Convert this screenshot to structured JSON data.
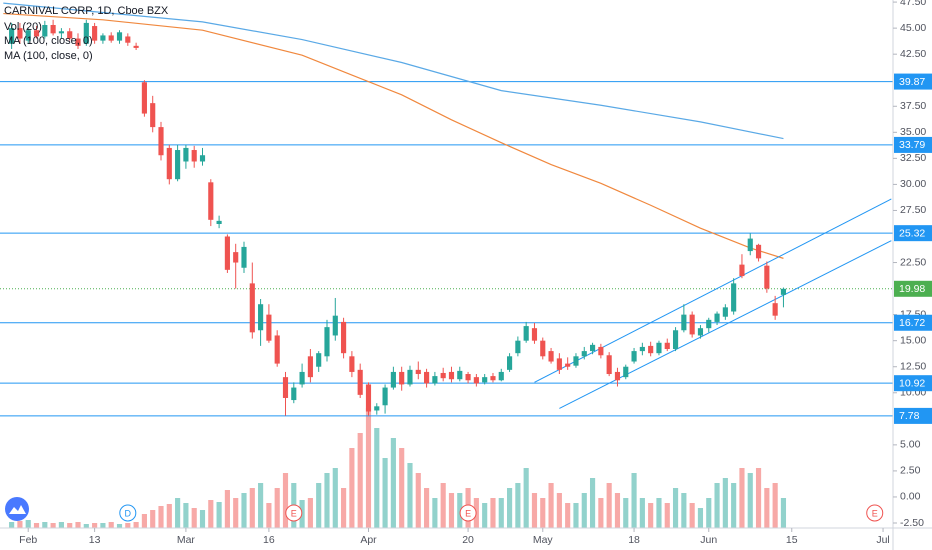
{
  "chart_data": {
    "type": "candlestick",
    "title": "CARNIVAL CORP, 1D, Cboe BZX",
    "volume_name": "Vol (20)",
    "up_color": "#26a69a",
    "down_color": "#ef5350",
    "x": [
      -2,
      -1,
      0,
      1,
      2,
      3,
      4,
      5,
      6,
      7,
      8,
      9,
      10,
      11,
      12,
      13,
      14,
      15,
      16,
      17,
      18,
      19,
      20,
      21,
      22,
      23,
      24,
      25,
      26,
      27,
      28,
      29,
      30,
      31,
      32,
      33,
      34,
      35,
      36,
      37,
      38,
      39,
      40,
      41,
      42,
      43,
      44,
      45,
      46,
      47,
      48,
      49,
      50,
      51,
      52,
      53,
      54,
      55,
      56,
      57,
      58,
      59,
      60,
      61,
      62,
      63,
      64,
      65,
      66,
      67,
      68,
      69,
      70,
      71,
      72,
      73,
      74,
      75,
      76,
      77,
      78,
      79,
      80,
      81,
      82,
      83,
      84,
      85,
      86,
      87,
      88,
      89,
      90,
      91
    ],
    "open": [
      43.5,
      45,
      43.8,
      44.8,
      44.2,
      45.3,
      44.5,
      44.7,
      44,
      43.5,
      45.2,
      43.8,
      44.3,
      43.8,
      44.2,
      43.3,
      39.8,
      37.8,
      35.5,
      33.5,
      30.5,
      32.2,
      33.3,
      32.2,
      30.2,
      26.2,
      25,
      23.5,
      22,
      20.5,
      16,
      17.5,
      15.5,
      11.5,
      9.3,
      10.8,
      13.5,
      12.5,
      13.5,
      15.5,
      16.8,
      13.5,
      12.2,
      10.8,
      8.3,
      8.8,
      10.5,
      12,
      10.8,
      12.2,
      12,
      10.9,
      11.9,
      12,
      11.3,
      11.8,
      11.5,
      11,
      11.6,
      11.2,
      12.2,
      13.8,
      15,
      16.2,
      15,
      14,
      13.3,
      12.8,
      12.6,
      13.5,
      14,
      14.4,
      13.6,
      12,
      11.5,
      13,
      14,
      14.5,
      13.8,
      14.8,
      14.2,
      16,
      17.5,
      15.5,
      16.2,
      16.8,
      17.3,
      17.8,
      22.3,
      23.6,
      24.2,
      22.2,
      18.6,
      19.4
    ],
    "high": [
      45.5,
      45.5,
      45,
      45.2,
      45.7,
      45.8,
      45,
      45,
      44.5,
      45.8,
      45.5,
      44.5,
      44.6,
      44.8,
      44.5,
      43.6,
      40,
      38.5,
      36,
      33.8,
      33.8,
      33.8,
      33.7,
      33.5,
      30.5,
      27,
      25.2,
      24.3,
      24.5,
      22.5,
      19,
      18.5,
      16,
      12,
      11,
      12.8,
      14.2,
      14,
      17,
      19.1,
      17.2,
      14,
      12.8,
      11,
      9,
      10.8,
      12.5,
      12.5,
      12.6,
      13,
      12.3,
      12,
      12.4,
      12.5,
      12.5,
      12,
      11.8,
      11.8,
      11.9,
      12.3,
      13.8,
      15.4,
      16.8,
      16.7,
      15.3,
      14.3,
      13.8,
      13.4,
      13.8,
      14.4,
      14.8,
      14.7,
      13.9,
      12.4,
      12.7,
      14.3,
      14.8,
      14.9,
      15,
      15.2,
      16.3,
      18.5,
      17.8,
      16.5,
      17.2,
      17.8,
      18.5,
      21,
      23.3,
      25.3,
      24.3,
      22.6,
      19.3,
      20.1
    ],
    "low": [
      43,
      43.5,
      43.5,
      44,
      44,
      44.3,
      44,
      43.8,
      43,
      43.3,
      43.5,
      43.5,
      43.6,
      43.5,
      43.3,
      42.9,
      36.5,
      35,
      32.3,
      30,
      30.3,
      31.5,
      31.6,
      31.8,
      26,
      25.8,
      21.5,
      20,
      21.5,
      15.2,
      14.5,
      14.8,
      12.5,
      7.8,
      9,
      10.5,
      11,
      12,
      13,
      15,
      13.3,
      11.5,
      9.5,
      7.8,
      7.9,
      8,
      10.3,
      10.2,
      10.6,
      11.3,
      10.5,
      10.7,
      11.1,
      11,
      11.1,
      10.9,
      10.6,
      10.8,
      11,
      11.1,
      12,
      13.5,
      14.8,
      14.7,
      13.2,
      12.8,
      11.8,
      12.2,
      12.4,
      13.2,
      13.7,
      13.3,
      11.6,
      10.6,
      11.3,
      12.8,
      13.6,
      13.5,
      13.6,
      14,
      14,
      15.8,
      15.3,
      15.2,
      15.8,
      16.5,
      17,
      17.5,
      21,
      23.2,
      22.6,
      19.6,
      17,
      18.2
    ],
    "close": [
      45,
      44,
      44.8,
      44.2,
      45.3,
      44.5,
      44.7,
      44,
      43.3,
      45.5,
      43.8,
      44.3,
      43.8,
      44.6,
      43.6,
      43.1,
      36.8,
      35.5,
      32.8,
      30.5,
      33.3,
      33.5,
      32.2,
      32.8,
      26.6,
      26.5,
      21.8,
      22.5,
      24,
      15.8,
      18.5,
      15,
      12.8,
      9.5,
      10.5,
      12,
      11.5,
      13.8,
      16.3,
      17.4,
      13.8,
      12,
      9.8,
      8.2,
      8.7,
      10.5,
      12,
      10.8,
      12.2,
      11.8,
      10.9,
      11.6,
      11.4,
      11.3,
      12.1,
      11.2,
      10.9,
      11.5,
      11.2,
      12,
      13.5,
      15,
      16.4,
      15,
      13.5,
      13,
      12.2,
      12.5,
      13.5,
      14,
      14.6,
      13.6,
      11.8,
      11.2,
      12.5,
      14,
      14.4,
      13.8,
      14.8,
      14.2,
      16,
      17.5,
      15.6,
      16.2,
      17,
      17.6,
      18.2,
      20.5,
      21.2,
      24.8,
      22.9,
      20,
      17.4,
      19.98
    ],
    "volume": [
      6,
      7,
      8,
      5,
      6,
      5,
      6,
      5,
      6,
      4,
      5,
      5,
      6,
      4,
      5,
      6,
      14,
      18,
      22,
      24,
      30,
      25,
      20,
      18,
      28,
      26,
      38,
      30,
      35,
      40,
      45,
      25,
      40,
      55,
      45,
      28,
      30,
      45,
      55,
      60,
      40,
      80,
      95,
      120,
      100,
      70,
      90,
      80,
      65,
      55,
      40,
      30,
      45,
      35,
      35,
      40,
      30,
      25,
      30,
      30,
      40,
      45,
      60,
      35,
      30,
      45,
      35,
      25,
      25,
      35,
      50,
      30,
      45,
      35,
      30,
      55,
      30,
      25,
      30,
      25,
      40,
      35,
      25,
      20,
      30,
      45,
      50,
      45,
      60,
      55,
      60,
      40,
      45,
      30
    ],
    "moving_averages": [
      {
        "name": "MA (100, close, 0)",
        "color": "#f0883e",
        "x": [
          -3,
          9,
          21,
          33,
          39,
          45,
          51,
          57,
          63,
          69,
          75,
          81,
          87,
          91
        ],
        "values": [
          46.4,
          45.8,
          44.8,
          42.4,
          40.5,
          38.6,
          36.2,
          34,
          31.9,
          30.1,
          28,
          25.8,
          23.9,
          22.9
        ]
      },
      {
        "name": "MA (100, close, 0)",
        "color": "#5aa9e6",
        "x": [
          -3,
          21,
          33,
          45,
          57,
          69,
          81,
          91
        ],
        "values": [
          47.4,
          45.6,
          43.9,
          41.7,
          39,
          37.6,
          36,
          34.4
        ]
      }
    ],
    "levels": [
      {
        "value": 39.87,
        "color": "#2196f3",
        "style": "solid"
      },
      {
        "value": 33.79,
        "color": "#2196f3",
        "style": "solid"
      },
      {
        "value": 25.32,
        "color": "#2196f3",
        "style": "solid"
      },
      {
        "value": 19.98,
        "color": "#4caf50",
        "style": "dotted"
      },
      {
        "value": 16.72,
        "color": "#2196f3",
        "style": "solid"
      },
      {
        "value": 10.92,
        "color": "#2196f3",
        "style": "solid"
      },
      {
        "value": 7.78,
        "color": "#2196f3",
        "style": "solid"
      }
    ],
    "trend_lines": [
      {
        "color": "#2196f3",
        "x": [
          61,
          104
        ],
        "values": [
          11,
          28.6
        ]
      },
      {
        "color": "#2196f3",
        "x": [
          64,
          104
        ],
        "values": [
          8.5,
          24.6
        ]
      }
    ],
    "markers": [
      {
        "x": 12,
        "label": "D",
        "color": "#2196f3"
      },
      {
        "x": 32,
        "label": "E",
        "color": "#ef5350"
      },
      {
        "x": 53,
        "label": "E",
        "color": "#ef5350"
      },
      {
        "x": 102,
        "label": "E",
        "color": "#ef5350"
      }
    ],
    "xlim": [
      -3.4,
      104.2
    ],
    "xticks": [
      {
        "value": 0,
        "label": "Feb"
      },
      {
        "value": 8,
        "label": "13"
      },
      {
        "value": 19,
        "label": "Mar"
      },
      {
        "value": 29,
        "label": "16"
      },
      {
        "value": 41,
        "label": "Apr"
      },
      {
        "value": 53,
        "label": "20"
      },
      {
        "value": 62,
        "label": "May"
      },
      {
        "value": 73,
        "label": "18"
      },
      {
        "value": 82,
        "label": "Jun"
      },
      {
        "value": 92,
        "label": "15"
      },
      {
        "value": 103,
        "label": "Jul"
      }
    ],
    "ylim": [
      -2.98,
      47.7
    ],
    "yticks": [
      {
        "value": 47.5,
        "label": "47.50"
      },
      {
        "value": 45,
        "label": "45.00"
      },
      {
        "value": 42.5,
        "label": "42.50"
      },
      {
        "value": 37.5,
        "label": "37.50"
      },
      {
        "value": 35,
        "label": "35.00"
      },
      {
        "value": 32.5,
        "label": "32.50"
      },
      {
        "value": 30,
        "label": "30.00"
      },
      {
        "value": 27.5,
        "label": "27.50"
      },
      {
        "value": 22.5,
        "label": "22.50"
      },
      {
        "value": 17.5,
        "label": "17.50"
      },
      {
        "value": 15,
        "label": "15.00"
      },
      {
        "value": 12.5,
        "label": "12.50"
      },
      {
        "value": 10,
        "label": "10.00"
      },
      {
        "value": 5,
        "label": "5.00"
      },
      {
        "value": 2.5,
        "label": "2.50"
      },
      {
        "value": 0,
        "label": "0.00"
      },
      {
        "value": -2.5,
        "label": "-2.50"
      }
    ],
    "grid": false
  }
}
